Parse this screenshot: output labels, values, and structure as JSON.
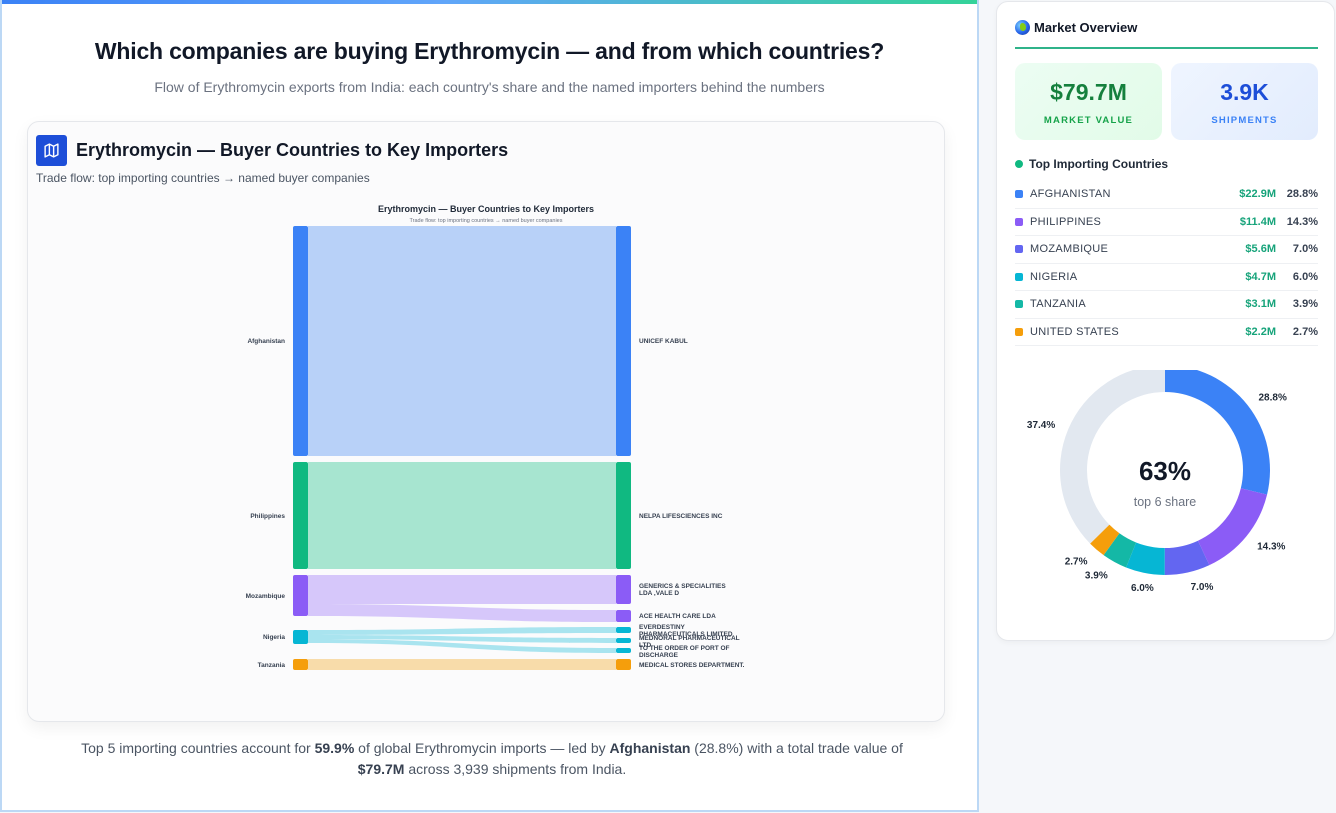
{
  "header": {
    "title": "Which companies are buying Erythromycin — and from which countries?",
    "subtitle": "Flow of Erythromycin exports from India: each country's share and the named importers behind the numbers"
  },
  "chart_card": {
    "icon": "map-icon",
    "title": "Erythromycin — Buyer Countries to Key Importers",
    "subtitle": "Trade flow: top importing countries → named buyer companies"
  },
  "summary": {
    "part1": "Top 5 importing countries account for ",
    "top5_share": "59.9%",
    "part2": " of global Erythromycin imports — led by ",
    "leader": "Afghanistan",
    "part3": " (28.8%) with a total trade value of ",
    "total_value": "$79.7M",
    "part4": " across 3,939 shipments from India."
  },
  "side_panel": {
    "icon": "globe-icon",
    "title": "Market Overview",
    "kpis": [
      {
        "value": "$79.7M",
        "label": "MARKET VALUE"
      },
      {
        "value": "3.9K",
        "label": "SHIPMENTS"
      }
    ],
    "list_title": "Top Importing Countries",
    "countries": [
      {
        "name": "AFGHANISTAN",
        "value": "$22.9M",
        "pct": "28.8%",
        "color": "#3b82f6"
      },
      {
        "name": "PHILIPPINES",
        "value": "$11.4M",
        "pct": "14.3%",
        "color": "#8b5cf6"
      },
      {
        "name": "MOZAMBIQUE",
        "value": "$5.6M",
        "pct": "7.0%",
        "color": "#6366f1"
      },
      {
        "name": "NIGERIA",
        "value": "$4.7M",
        "pct": "6.0%",
        "color": "#06b6d4"
      },
      {
        "name": "TANZANIA",
        "value": "$3.1M",
        "pct": "3.9%",
        "color": "#14b8a6"
      },
      {
        "name": "UNITED STATES",
        "value": "$2.2M",
        "pct": "2.7%",
        "color": "#f59e0b"
      }
    ],
    "donut": {
      "center_value": "63%",
      "center_label": "top 6 share"
    }
  },
  "chart_data": [
    {
      "type": "sankey",
      "title": "Erythromycin — Buyer Countries to Key Importers",
      "subtitle": "Trade flow: top importing countries → named buyer companies",
      "source_nodes": [
        {
          "name": "Afghanistan",
          "color": "#3b82f6"
        },
        {
          "name": "Philippines",
          "color": "#10b981"
        },
        {
          "name": "Mozambique",
          "color": "#8b5cf6"
        },
        {
          "name": "Nigeria",
          "color": "#06b6d4"
        },
        {
          "name": "Tanzania",
          "color": "#f59e0b"
        }
      ],
      "target_nodes": [
        "UNICEF KABUL",
        "NELPA LIFESCIENCES INC",
        "GENERICS & SPECIALITIES LDA ,VALE D",
        "ACE HEALTH CARE LDA",
        "EVERDESTINY PHARMACEUTICALS LIMITED",
        "MEDNORAL PHARMACEUTICAL LTD",
        "TO THE ORDER OF PORT OF DISCHARGE",
        "MEDICAL STORES DEPARTMENT."
      ],
      "links": [
        {
          "source": "Afghanistan",
          "target": "UNICEF KABUL",
          "value": 22.9
        },
        {
          "source": "Philippines",
          "target": "NELPA LIFESCIENCES INC",
          "value": 11.4
        },
        {
          "source": "Mozambique",
          "target": "GENERICS & SPECIALITIES LDA ,VALE D",
          "value": 4.3
        },
        {
          "source": "Mozambique",
          "target": "ACE HEALTH CARE LDA",
          "value": 1.3
        },
        {
          "source": "Nigeria",
          "target": "EVERDESTINY PHARMACEUTICALS LIMITED",
          "value": 0.6
        },
        {
          "source": "Nigeria",
          "target": "MEDNORAL PHARMACEUTICAL LTD",
          "value": 0.5
        },
        {
          "source": "Nigeria",
          "target": "TO THE ORDER OF PORT OF DISCHARGE",
          "value": 0.5
        },
        {
          "source": "Tanzania",
          "target": "MEDICAL STORES DEPARTMENT.",
          "value": 1.0
        }
      ],
      "units": "USD millions (estimated from band widths)"
    },
    {
      "type": "pie",
      "title": "Top Importing Countries share",
      "center_text": "63%",
      "center_subtext": "top 6 share",
      "categories": [
        "Afghanistan",
        "Philippines",
        "Mozambique",
        "Nigeria",
        "Tanzania",
        "United States",
        "Others"
      ],
      "values": [
        28.8,
        14.3,
        7.0,
        6.0,
        3.9,
        2.7,
        37.4
      ],
      "labels": [
        "28.8%",
        "14.3%",
        "7.0%",
        "6.0%",
        "3.9%",
        "2.7%",
        "37.4%"
      ],
      "colors": [
        "#3b82f6",
        "#8b5cf6",
        "#6366f1",
        "#06b6d4",
        "#14b8a6",
        "#f59e0b",
        "#e2e8f0"
      ],
      "donut": true
    }
  ]
}
